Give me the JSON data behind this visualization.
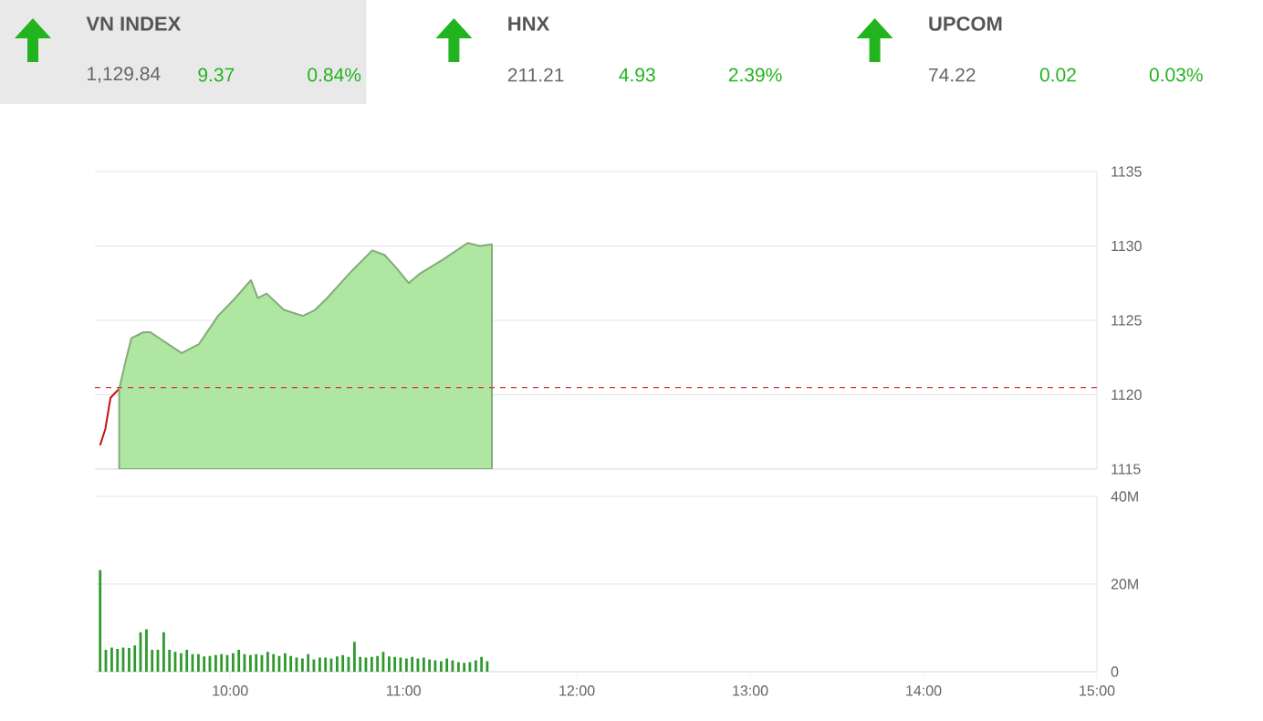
{
  "chart_data": [
    {
      "type": "other",
      "annotations": [
        "VN INDEX",
        "1,129.84",
        "9.37",
        "0.84%",
        "HNX",
        "211.21",
        "4.93",
        "2.39%",
        "UPCOM",
        "74.22",
        "0.02",
        "0.03%"
      ]
    },
    {
      "type": "area",
      "xlim": [
        9.22,
        15
      ],
      "ylim": [
        1115,
        1135
      ],
      "yticks": [
        1115,
        1120,
        1125,
        1130,
        1135
      ],
      "grid": "y",
      "tick_labels": "y",
      "ref_lines": [
        {
          "axis": "y",
          "value": 1120.47,
          "color": "#e03030",
          "line_style": "dashed"
        }
      ],
      "series": [
        {
          "type": "line",
          "color": "#cc1111",
          "x": [
            9.25,
            9.28,
            9.31,
            9.36
          ],
          "values": [
            1116.6,
            1117.7,
            1119.8,
            1120.4
          ]
        },
        {
          "type": "area",
          "color": "#aee6a2",
          "x": [
            9.36,
            9.4,
            9.43,
            9.5,
            9.54,
            9.72,
            9.82,
            9.93,
            10.03,
            10.12,
            10.16,
            10.21,
            10.31,
            10.42,
            10.49,
            10.56,
            10.7,
            10.82,
            10.89,
            10.96,
            11.03,
            11.09,
            11.23,
            11.37,
            11.44,
            11.51
          ],
          "values": [
            1120.4,
            1122.4,
            1123.8,
            1124.2,
            1124.2,
            1122.8,
            1123.4,
            1125.3,
            1126.5,
            1127.7,
            1126.5,
            1126.8,
            1125.7,
            1125.3,
            1125.7,
            1126.5,
            1128.3,
            1129.7,
            1129.4,
            1128.5,
            1127.5,
            1128.1,
            1129.1,
            1130.2,
            1130.0,
            1130.1
          ]
        }
      ]
    },
    {
      "type": "bar",
      "xlim": [
        9.22,
        15
      ],
      "ylim": [
        0,
        40
      ],
      "grid": "y",
      "xticks": [
        {
          "value": 10,
          "label": "10:00"
        },
        {
          "value": 11,
          "label": "11:00"
        },
        {
          "value": 12,
          "label": "12:00"
        },
        {
          "value": 13,
          "label": "13:00"
        },
        {
          "value": 14,
          "label": "14:00"
        },
        {
          "value": 15,
          "label": "15:00"
        }
      ],
      "yticks": [
        0,
        {
          "value": 20,
          "label": "20M"
        },
        {
          "value": 40,
          "label": "40M"
        }
      ],
      "color": "#2e9a2e",
      "x": [
        9.25,
        9.283,
        9.317,
        9.35,
        9.383,
        9.417,
        9.45,
        9.483,
        9.517,
        9.55,
        9.583,
        9.617,
        9.65,
        9.683,
        9.717,
        9.75,
        9.783,
        9.817,
        9.85,
        9.883,
        9.917,
        9.95,
        9.983,
        10.017,
        10.05,
        10.083,
        10.117,
        10.15,
        10.183,
        10.217,
        10.25,
        10.283,
        10.317,
        10.35,
        10.383,
        10.417,
        10.45,
        10.483,
        10.517,
        10.55,
        10.583,
        10.617,
        10.65,
        10.683,
        10.717,
        10.75,
        10.783,
        10.817,
        10.85,
        10.883,
        10.917,
        10.95,
        10.983,
        11.017,
        11.05,
        11.083,
        11.117,
        11.15,
        11.183,
        11.217,
        11.25,
        11.283,
        11.317,
        11.35,
        11.383,
        11.417,
        11.45,
        11.483
      ],
      "values": [
        23.2,
        5.0,
        5.5,
        5.2,
        5.5,
        5.4,
        6.0,
        9.0,
        9.7,
        5.0,
        5.0,
        9.0,
        5.0,
        4.5,
        4.2,
        5.0,
        4.0,
        4.0,
        3.5,
        3.6,
        3.8,
        4.0,
        3.8,
        4.2,
        5.0,
        4.0,
        3.8,
        4.0,
        3.8,
        4.5,
        4.0,
        3.6,
        4.2,
        3.6,
        3.2,
        3.0,
        4.0,
        2.8,
        3.2,
        3.2,
        3.0,
        3.5,
        3.8,
        3.4,
        6.8,
        3.4,
        3.2,
        3.4,
        3.6,
        4.5,
        3.5,
        3.4,
        3.2,
        3.0,
        3.4,
        3.0,
        3.2,
        2.8,
        2.6,
        2.4,
        3.0,
        2.6,
        2.2,
        2.0,
        2.2,
        2.6,
        3.4,
        2.4
      ]
    }
  ]
}
